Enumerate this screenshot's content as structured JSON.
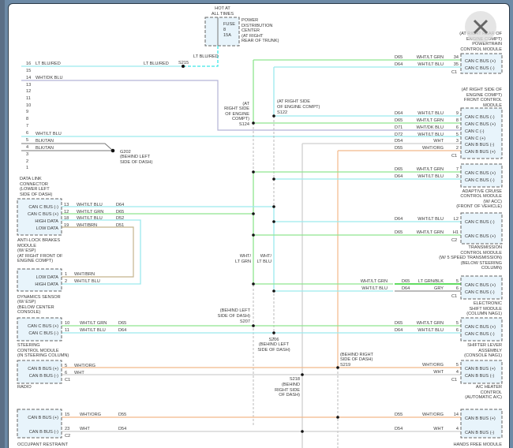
{
  "window": {
    "close_icon": "close-x"
  },
  "colors": {
    "wht_lt_grn": "#8fe58f",
    "lt_grn_blk": "#2fd02f",
    "wht_lt_blu": "#9ce9ee",
    "wht_dk_blu": "#b4b4d6",
    "wht_org": "#f2b98a",
    "wht": "#cfcfcf",
    "wht_brn": "#c4b48e",
    "lt_blu_red": "#3ee8e8"
  },
  "pdc": {
    "hot": [
      "HOT AT",
      "ALL TIMES"
    ],
    "fuse": [
      "FUSE",
      "8",
      "15A"
    ],
    "label": [
      "POWER",
      "DISTRIBUTION",
      "CENTER",
      "(AT RIGHT",
      "REAR OF TRUNK)"
    ]
  },
  "dlc": {
    "pins": [
      "16",
      "15",
      "14",
      "13",
      "12",
      "11",
      "10",
      "9",
      "8",
      "7",
      "6",
      "5",
      "4",
      "3",
      "2",
      "1"
    ],
    "wires": {
      "p16": "LT BLU/RED",
      "p16b": "LT BLU/RED",
      "p14": "WHT/DK BLU",
      "p6": "WHT/LT BLU",
      "p5": "BLK/TAN",
      "p4": "BLK/TAN"
    },
    "label": [
      "DATA LINK",
      "CONNECTOR",
      "(LOWER LEFT",
      "SIDE OF DASH)"
    ]
  },
  "fuse_wire": "LT BLU/RED",
  "splices": {
    "s215": "S215",
    "s124": [
      "(AT",
      "RIGHT SIDE",
      "OF ENGINE",
      "COMPT)",
      "S124"
    ],
    "s122": [
      "(AT RIGHT SIDE",
      "OF ENGINE COMPT)",
      "S122"
    ],
    "g202": [
      "G202",
      "(BEHIND LEFT",
      "SIDE OF DASH)"
    ],
    "s207": [
      "(BEHIND LEFT",
      "SIDE OF DASH)",
      "S207"
    ],
    "s206": [
      "S206",
      "(BEHIND LEFT",
      "SIDE OF DASH)"
    ],
    "s219": [
      "(BEHIND RIGHT",
      "SIDE OF DASH)",
      "S219"
    ],
    "s218": [
      "S218",
      "(BEHIND",
      "RIGHT SIDE",
      "OF DASH)"
    ],
    "vgrn": [
      "WHT/",
      "LT GRN"
    ],
    "vblu": [
      "WHT/",
      "LT BLU"
    ]
  },
  "pcm": {
    "label": [
      "(AT RIGHT REAR OF",
      "ENGINE COMPT)",
      "POWERTRAIN",
      "CONTROL MODULE"
    ],
    "conn": "C1",
    "pins": [
      {
        "num": "34",
        "circuit": "D65",
        "color": "WHT/LT GRN",
        "signal": "CAN C BUS (+)"
      },
      {
        "num": "35",
        "circuit": "D64",
        "color": "WHT/LT BLU",
        "signal": "CAN C BUS (-)"
      }
    ]
  },
  "fcm": {
    "label": [
      "(AT RIGHT SIDE OF",
      "ENGINE COMPT)",
      "FRONT CONTROL",
      "MODULE"
    ],
    "conn": "C1",
    "pins": [
      {
        "num": "9",
        "circuit": "D64",
        "color": "WHT/LT BLU",
        "signal": "CAN C BUS (-)"
      },
      {
        "num": "8",
        "circuit": "D65",
        "color": "WHT/LT GRN",
        "signal": "CAN C BUS (+)"
      },
      {
        "num": "6",
        "circuit": "D71",
        "color": "WHT/DK BLU",
        "signal": "CAN C (-)"
      },
      {
        "num": "5",
        "circuit": "D72",
        "color": "WHT/LT BLU",
        "signal": "CAN C (+)"
      },
      {
        "num": "3",
        "circuit": "D54",
        "color": "WHT",
        "signal": "CAN B BUS (-)"
      },
      {
        "num": "2",
        "circuit": "D55",
        "color": "WHT/ORG",
        "signal": "CAN B BUS (+)"
      }
    ]
  },
  "acc": {
    "label": [
      "ADAPTIVE CRUISE",
      "CONTROL MODULE",
      "(W/ ACC)",
      "(FRONT OF VEHICLE)"
    ],
    "pins": [
      {
        "num": "7",
        "circuit": "D65",
        "color": "WHT/LT GRN",
        "signal": "CAN C BUS (+)"
      },
      {
        "num": "3",
        "circuit": "D64",
        "color": "WHT/LT BLU",
        "signal": "CAN C BUS (-)"
      }
    ]
  },
  "tcm": {
    "label": [
      "TRANSMISSION",
      "CONTROL MODULE",
      "(W/ 5 SPEED TRANSMISSION)",
      "(BELOW STEERING",
      "COLUMN)"
    ],
    "conn": "C2",
    "pins": [
      {
        "num": "L2",
        "circuit": "D64",
        "color": "WHT/LT BLU",
        "signal": "CAN C BUS (-)"
      },
      {
        "num": "H1",
        "circuit": "D65",
        "color": "WHT/LT GRN",
        "signal": "CAN C BUS (+)"
      }
    ]
  },
  "esm": {
    "label": [
      "ELECTRONIC",
      "SHIFT MODULE",
      "(COLUMN NAG1)"
    ],
    "conn": "C1",
    "pins": [
      {
        "num": "5",
        "circuit": "D65",
        "color": "LT GRN/BLK",
        "in_color": "WHT/LT GRN",
        "signal": "CAN C BUS (+)"
      },
      {
        "num": "6",
        "circuit": "D64",
        "color": "GRY",
        "in_color": "WHT/LT BLU",
        "signal": "CAN C BUS (-)"
      }
    ]
  },
  "shifter": {
    "label": [
      "SHIFTER LEVER",
      "ASSEMBLY",
      "(CONSOLE NAG1)"
    ],
    "pins": [
      {
        "num": "5",
        "circuit": "D65",
        "color": "WHT/LT GRN",
        "signal": "CAN C BUS (+)"
      },
      {
        "num": "6",
        "circuit": "D64",
        "color": "WHT/LT BLU",
        "signal": "CAN C BUS (-)"
      }
    ]
  },
  "ac": {
    "label": [
      "A/C HEATER",
      "CONTROL",
      "(AUTOMATIC A/C)"
    ],
    "conn": "C1",
    "pins": [
      {
        "num": "5",
        "color": "WHT/ORG",
        "signal": "CAN B BUS (+)"
      },
      {
        "num": "4",
        "color": "WHT",
        "signal": "CAN B BUS (-)"
      }
    ]
  },
  "hfm": {
    "label": [
      "HANDS FREE MODULE"
    ],
    "pins": [
      {
        "num": "14",
        "circuit": "D55",
        "color": "WHT/ORG",
        "signal": "CAN B BUS (+)"
      },
      {
        "num": "4",
        "circuit": "D54",
        "color": "WHT",
        "signal": "CAN B BUS (-)"
      }
    ]
  },
  "abs": {
    "label": [
      "ANTI-LOCK BRAKES",
      "MODULE",
      "(W/ ESP)",
      "(AT RIGHT FRONT OF",
      "ENGINE COMPT)"
    ],
    "pins": [
      {
        "num": "13",
        "circuit": "D64",
        "color": "WHT/LT BLU",
        "signal": "CAN C BUS (-)"
      },
      {
        "num": "12",
        "circuit": "D65",
        "color": "WHT/LT GRN",
        "signal": "CAN C BUS (+)"
      },
      {
        "num": "18",
        "circuit": "D52",
        "color": "WHT/LT BLU",
        "signal": "HIGH DATA"
      },
      {
        "num": "19",
        "circuit": "D51",
        "color": "WHT/BRN",
        "signal": "LOW DATA"
      }
    ]
  },
  "dyn": {
    "label": [
      "DYNAMICS SENSOR",
      "(W/ ESP)",
      "(BELOW CENTER",
      "CONSOLE)"
    ],
    "pins": [
      {
        "num": "1",
        "color": "WHT/BRN",
        "signal": "LOW DATA"
      },
      {
        "num": "2",
        "color": "WHT/LT BLU",
        "signal": "HIGH DATA"
      }
    ]
  },
  "scm": {
    "label": [
      "STEERING",
      "CONTROL MODULE",
      "(IN STEERING COLUMN)"
    ],
    "pins": [
      {
        "num": "10",
        "circuit": "D65",
        "color": "WHT/LT GRN",
        "signal": "CAN C BUS (+)"
      },
      {
        "num": "11",
        "circuit": "D64",
        "color": "WHT/LT BLU",
        "signal": "CAN C BUS (-)"
      }
    ]
  },
  "radio": {
    "label": [
      "RADIO"
    ],
    "conn": "C1",
    "pins": [
      {
        "num": "5",
        "color": "WHT/ORG",
        "signal": "CAN B BUS (+)"
      },
      {
        "num": "6",
        "color": "WHT",
        "signal": "CAN B BUS (-)"
      }
    ]
  },
  "orc": {
    "label": [
      "OCCUPANT RESTRAINT"
    ],
    "conn": "C2",
    "pins": [
      {
        "num": "15",
        "circuit": "D55",
        "color": "WHT/ORG",
        "signal": "CAN B BUS (+)"
      },
      {
        "num": "23",
        "circuit": "D54",
        "color": "WHT",
        "signal": "CAN B BUS (-)"
      }
    ]
  }
}
